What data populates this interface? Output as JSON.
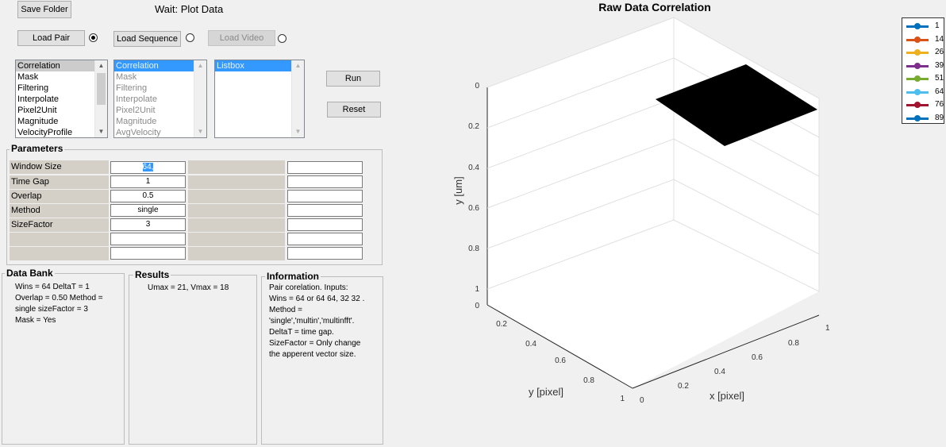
{
  "toolbar": {
    "save_folder": "Save Folder",
    "status": "Wait:  Plot Data",
    "load_pair": "Load Pair",
    "load_sequence": "Load Sequence",
    "load_video": "Load Video",
    "run": "Run",
    "reset": "Reset"
  },
  "lists": {
    "list1": [
      "Correlation",
      "Mask",
      "Filtering",
      "Interpolate",
      "Pixel2Unit",
      "Magnitude",
      "VelocityProfile"
    ],
    "list2": [
      "Correlation",
      "Mask",
      "Filtering",
      "Interpolate",
      "Pixel2Unit",
      "Magnitude",
      "AvgVelocity"
    ],
    "list3": [
      "Listbox"
    ]
  },
  "parameters": {
    "title": "Parameters",
    "rows": [
      {
        "label": "Window Size",
        "value": "64,"
      },
      {
        "label": "Time Gap",
        "value": "1"
      },
      {
        "label": "Overlap",
        "value": "0.5"
      },
      {
        "label": "Method",
        "value": "single"
      },
      {
        "label": "SizeFactor",
        "value": "3"
      },
      {
        "label": "",
        "value": ""
      },
      {
        "label": "",
        "value": ""
      }
    ]
  },
  "databank": {
    "title": "Data Bank",
    "lines": [
      "Wins = 64  DeltaT = 1",
      "Overlap = 0.50  Method =",
      "single  sizeFactor = 3",
      "Mask = Yes"
    ]
  },
  "results": {
    "title": "Results",
    "text": "Umax = 21, Vmax = 18"
  },
  "information": {
    "title": "Information",
    "lines": [
      "Pair corelation. Inputs:",
      "Wins = 64 or 64 64, 32 32 .",
      "Method =",
      "'single','multin','multinfft'.",
      "DeltaT = time gap.",
      "SizeFactor = Only change",
      "the apperent vector size."
    ]
  },
  "plot": {
    "title": "Raw Data Correlation",
    "ylabel": "y [um]",
    "xlabel": "x [pixel]",
    "zlabel": "y [pixel]",
    "y_ticks": [
      "0",
      "0.2",
      "0.4",
      "0.6",
      "0.8",
      "1"
    ],
    "left_floor_ticks": [
      "0",
      "0.2",
      "0.4",
      "0.6",
      "0.8",
      "1"
    ],
    "right_floor_ticks": [
      "0",
      "0.2",
      "0.4",
      "0.6",
      "0.8",
      "1"
    ],
    "legend": [
      {
        "label": "1",
        "color": "#0072bd"
      },
      {
        "label": "14",
        "color": "#d95319"
      },
      {
        "label": "26",
        "color": "#edb120"
      },
      {
        "label": "39",
        "color": "#7e2f8e"
      },
      {
        "label": "51",
        "color": "#77ac30"
      },
      {
        "label": "64",
        "color": "#4dbeee"
      },
      {
        "label": "76",
        "color": "#a2142f"
      },
      {
        "label": "89",
        "color": "#0072bd"
      }
    ]
  }
}
